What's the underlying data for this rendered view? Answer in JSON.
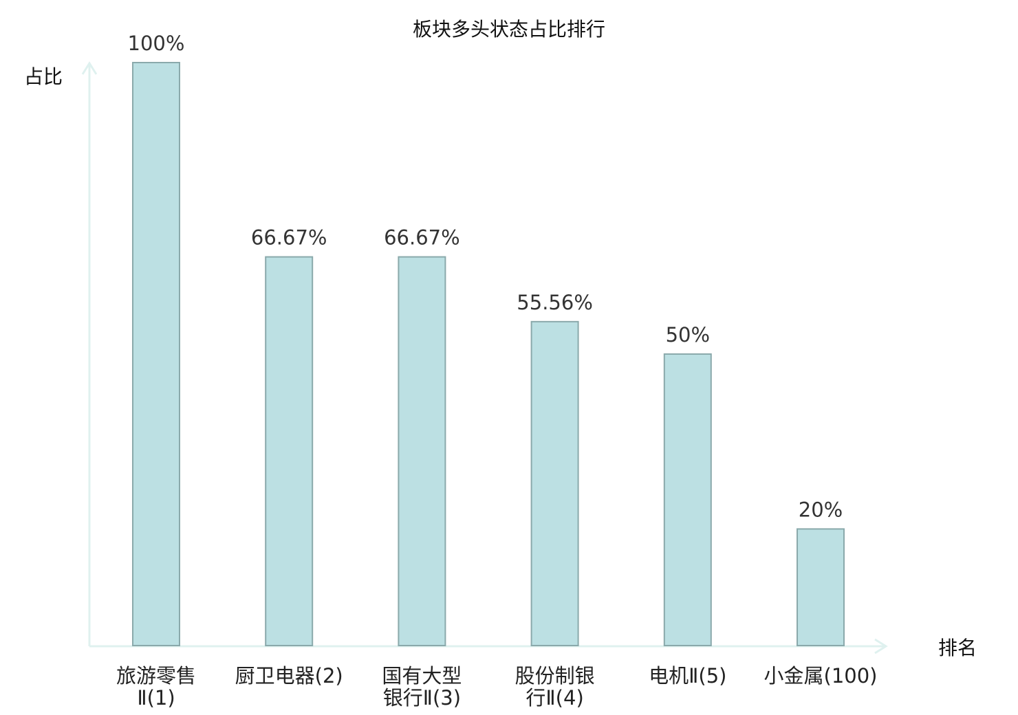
{
  "chart_data": {
    "type": "bar",
    "title": "板块多头状态占比排行",
    "xlabel": "排名",
    "ylabel": "占比",
    "categories": [
      [
        "旅游零售",
        "Ⅱ(1)"
      ],
      [
        "厨卫电器(2)"
      ],
      [
        "国有大型",
        "银行Ⅱ(3)"
      ],
      [
        "股份制银",
        "行Ⅱ(4)"
      ],
      [
        "电机Ⅱ(5)"
      ],
      [
        "小金属(100)"
      ]
    ],
    "values": [
      100,
      66.67,
      66.67,
      55.56,
      50,
      20
    ],
    "data_labels": [
      "100%",
      "66.67%",
      "66.67%",
      "55.56%",
      "50%",
      "20%"
    ],
    "ylim": [
      0,
      100
    ],
    "grid": false,
    "colors": {
      "bar_fill": "#bce0e3",
      "bar_stroke": "#8aa9ab",
      "axis": "#dff1ef",
      "highlight_label": "#e00000",
      "default_label": "#222222"
    },
    "highlight_index": 5
  }
}
